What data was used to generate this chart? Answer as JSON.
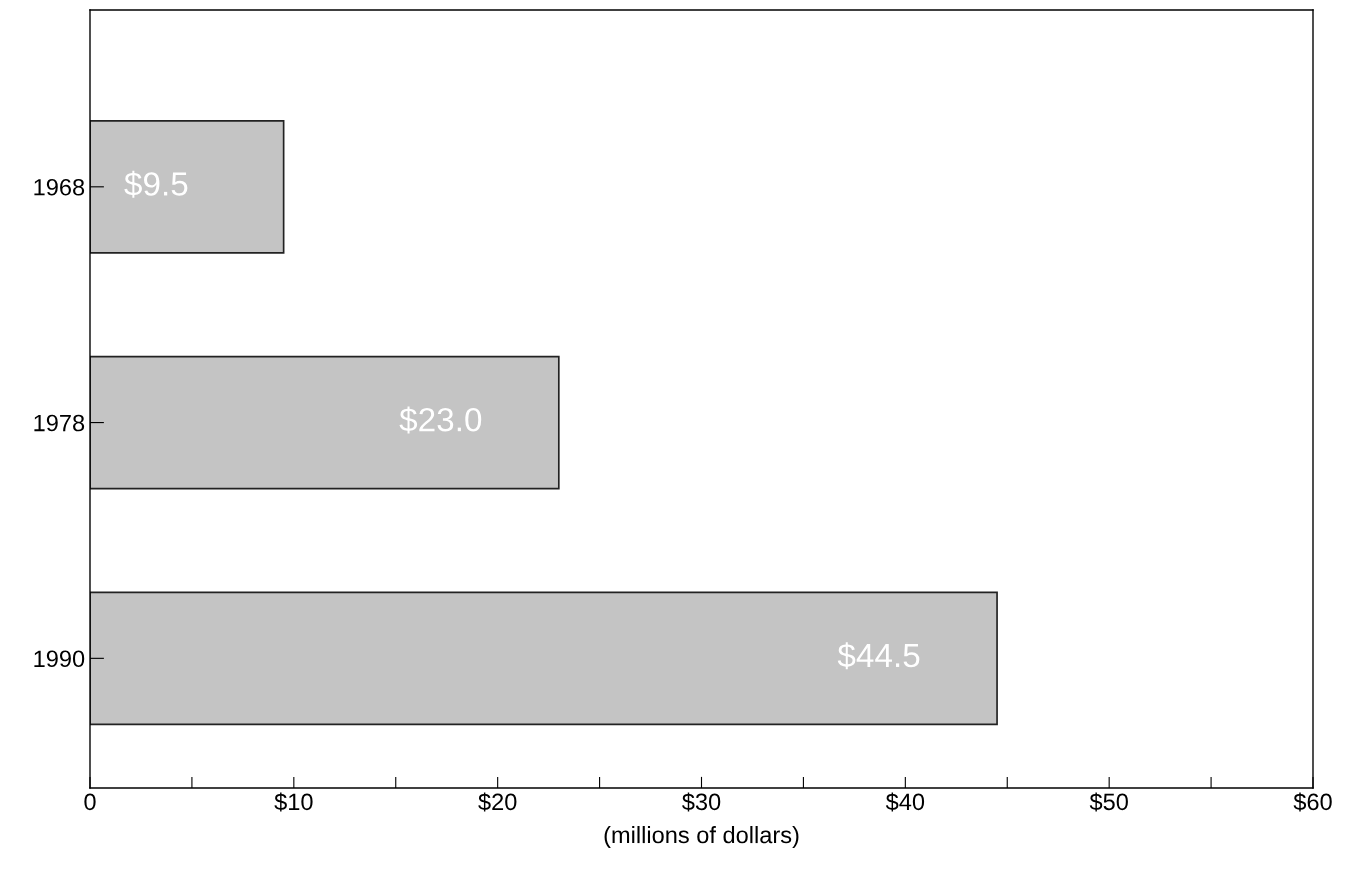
{
  "chart_data": {
    "type": "bar",
    "orientation": "horizontal",
    "xlabel": "(millions of dollars)",
    "categories": [
      "1968",
      "1978",
      "1990"
    ],
    "values": [
      9.5,
      23.0,
      44.5
    ],
    "value_labels": [
      "$9.5",
      "$23.0",
      "$44.5"
    ],
    "color": "#c4c4c4",
    "xlim": [
      0,
      60
    ],
    "xticks": [
      0,
      {
        "value": 5,
        "label": null
      },
      {
        "value": 10,
        "label": "$10"
      },
      {
        "value": 15,
        "label": null
      },
      {
        "value": 20,
        "label": "$20"
      },
      {
        "value": 25,
        "label": null
      },
      {
        "value": 30,
        "label": "$30"
      },
      {
        "value": 35,
        "label": null
      },
      {
        "value": 40,
        "label": "$40"
      },
      {
        "value": 45,
        "label": null
      },
      {
        "value": 50,
        "label": "$50"
      },
      {
        "value": 55,
        "label": null
      },
      {
        "value": 60,
        "label": "$60"
      }
    ],
    "grid": false
  }
}
